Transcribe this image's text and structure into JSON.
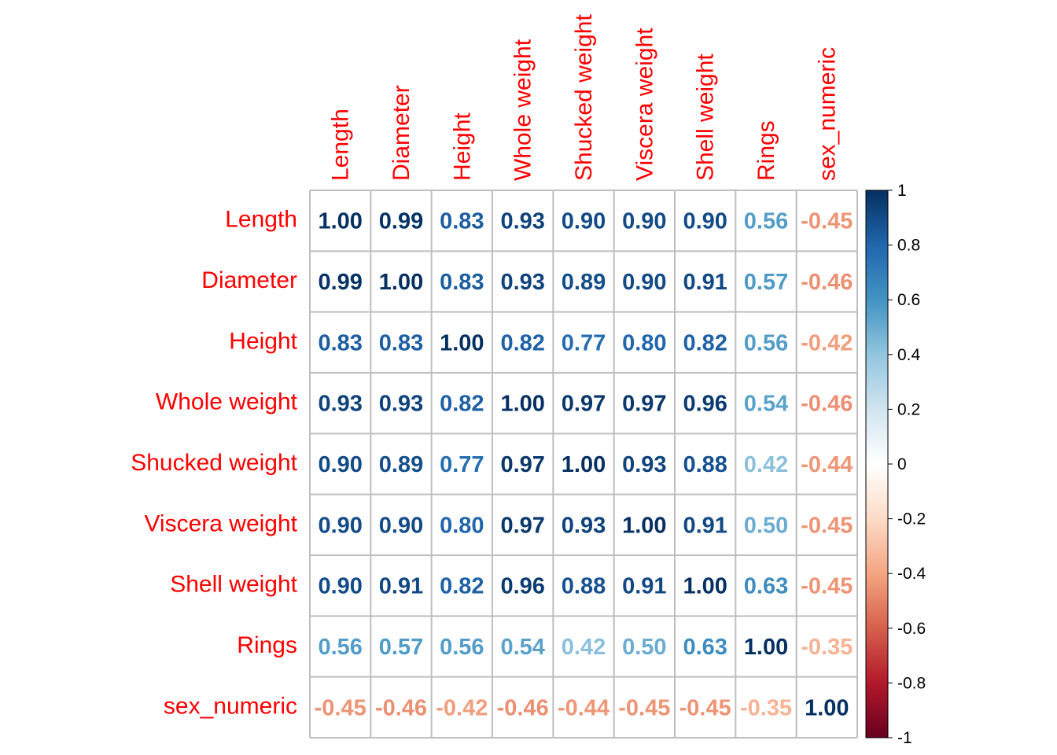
{
  "chart_data": {
    "type": "heatmap",
    "variables": [
      "Length",
      "Diameter",
      "Height",
      "Whole weight",
      "Shucked weight",
      "Viscera weight",
      "Shell weight",
      "Rings",
      "sex_numeric"
    ],
    "values": [
      [
        "1.00",
        "0.99",
        "0.83",
        "0.93",
        "0.90",
        "0.90",
        "0.90",
        "0.56",
        "-0.45"
      ],
      [
        "0.99",
        "1.00",
        "0.83",
        "0.93",
        "0.89",
        "0.90",
        "0.91",
        "0.57",
        "-0.46"
      ],
      [
        "0.83",
        "0.83",
        "1.00",
        "0.82",
        "0.77",
        "0.80",
        "0.82",
        "0.56",
        "-0.42"
      ],
      [
        "0.93",
        "0.93",
        "0.82",
        "1.00",
        "0.97",
        "0.97",
        "0.96",
        "0.54",
        "-0.46"
      ],
      [
        "0.90",
        "0.89",
        "0.77",
        "0.97",
        "1.00",
        "0.93",
        "0.88",
        "0.42",
        "-0.44"
      ],
      [
        "0.90",
        "0.90",
        "0.80",
        "0.97",
        "0.93",
        "1.00",
        "0.91",
        "0.50",
        "-0.45"
      ],
      [
        "0.90",
        "0.91",
        "0.82",
        "0.96",
        "0.88",
        "0.91",
        "1.00",
        "0.63",
        "-0.45"
      ],
      [
        "0.56",
        "0.57",
        "0.56",
        "0.54",
        "0.42",
        "0.50",
        "0.63",
        "1.00",
        "-0.35"
      ],
      [
        "-0.45",
        "-0.46",
        "-0.42",
        "-0.46",
        "-0.44",
        "-0.45",
        "-0.45",
        "-0.35",
        "1.00"
      ]
    ],
    "color_range": [
      -1,
      1
    ],
    "colorbar_ticks": [
      "1",
      "0.8",
      "0.6",
      "0.4",
      "0.2",
      "0",
      "-0.2",
      "-0.4",
      "-0.6",
      "-0.8",
      "-1"
    ],
    "colorbar_tick_values": [
      1,
      0.8,
      0.6,
      0.4,
      0.2,
      0,
      -0.2,
      -0.4,
      -0.6,
      -0.8,
      -1
    ],
    "label_color": "#FF0000",
    "grid_color": "#BEBEBE",
    "palette": [
      "#67001F",
      "#B2182B",
      "#D6604D",
      "#F4A582",
      "#FDDBC7",
      "#FFFFFF",
      "#D1E5F0",
      "#92C5DE",
      "#4393C3",
      "#2166AC",
      "#053061"
    ]
  }
}
